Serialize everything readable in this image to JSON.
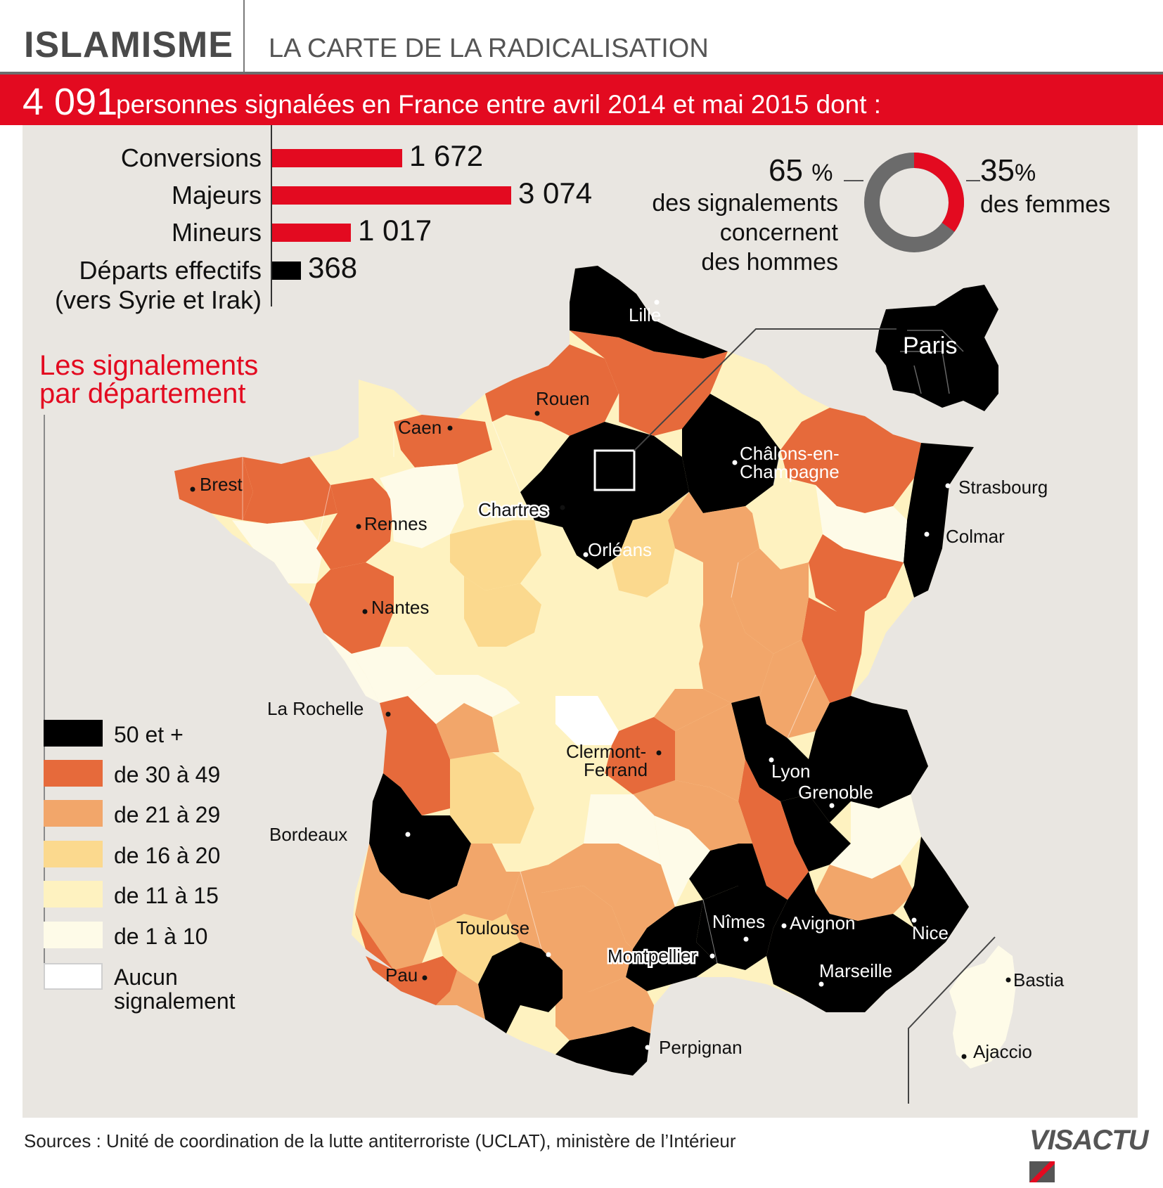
{
  "header": {
    "kicker": "ISLAMISME",
    "title": "LA CARTE DE LA RADICALISATION"
  },
  "banner": {
    "number": "4 091",
    "text": "personnes signalées en France entre avril 2014 et mai 2015 dont :"
  },
  "breakdown": [
    {
      "label": "Conversions",
      "value": 1672,
      "value_text": "1 672",
      "color": "#e30a20"
    },
    {
      "label": "Majeurs",
      "value": 3074,
      "value_text": "3 074",
      "color": "#e30a20"
    },
    {
      "label": "Mineurs",
      "value": 1017,
      "value_text": "1 017",
      "color": "#e30a20"
    },
    {
      "label": "Départs effectifs",
      "label_line2": "(vers Syrie et Irak)",
      "value": 368,
      "value_text": "368",
      "color": "#000000"
    }
  ],
  "gender": {
    "men": {
      "value": 65,
      "number": "65",
      "unit": "%",
      "text_lines": [
        "des signalements",
        "concernent",
        "des hommes"
      ],
      "color": "#6b6b6b"
    },
    "women": {
      "value": 35,
      "number": "35",
      "unit": "%",
      "text": "des femmes",
      "color": "#e30a20"
    }
  },
  "legend": {
    "title_lines": [
      "Les signalements",
      "par département"
    ],
    "items": [
      {
        "label": "50 et +",
        "color": "#000000"
      },
      {
        "label": "de 30 à 49",
        "color": "#e66a3b"
      },
      {
        "label": "de 21 à 29",
        "color": "#f2a66a"
      },
      {
        "label": "de 16 à 20",
        "color": "#fbd98e"
      },
      {
        "label": "de 11 à 15",
        "color": "#fef2c0"
      },
      {
        "label": "de 1 à 10",
        "color": "#fefbe8"
      },
      {
        "label": "Aucun signalement",
        "label_lines": [
          "Aucun",
          "signalement"
        ],
        "color": "#ffffff"
      }
    ]
  },
  "cities": [
    {
      "name": "Lille",
      "class": "dark"
    },
    {
      "name": "Rouen",
      "class": "light"
    },
    {
      "name": "Caen",
      "class": "light"
    },
    {
      "name": "Brest",
      "class": "light"
    },
    {
      "name": "Rennes",
      "class": "light"
    },
    {
      "name": "Chartres",
      "class": "halo"
    },
    {
      "name": "Orléans",
      "class": "dark"
    },
    {
      "name": "Châlons-en-",
      "class": "dark"
    },
    {
      "name": "Champagne",
      "class": "dark"
    },
    {
      "name": "Strasbourg",
      "class": "light"
    },
    {
      "name": "Colmar",
      "class": "light"
    },
    {
      "name": "Nantes",
      "class": "light"
    },
    {
      "name": "La Rochelle",
      "class": "light"
    },
    {
      "name": "Clermont-",
      "class": "light"
    },
    {
      "name": "Ferrand",
      "class": "light"
    },
    {
      "name": "Lyon",
      "class": "dark"
    },
    {
      "name": "Grenoble",
      "class": "dark"
    },
    {
      "name": "Bordeaux",
      "class": "light"
    },
    {
      "name": "Toulouse",
      "class": "light"
    },
    {
      "name": "Pau",
      "class": "light"
    },
    {
      "name": "Nîmes",
      "class": "dark"
    },
    {
      "name": "Avignon",
      "class": "dark"
    },
    {
      "name": "Montpellier",
      "class": "halo"
    },
    {
      "name": "Marseille",
      "class": "dark"
    },
    {
      "name": "Nice",
      "class": "dark"
    },
    {
      "name": "Perpignan",
      "class": "light"
    },
    {
      "name": "Bastia",
      "class": "light"
    },
    {
      "name": "Ajaccio",
      "class": "light"
    },
    {
      "name": "Paris",
      "class": "dark"
    }
  ],
  "footer": {
    "sources": "Sources : Unité de coordination de la lutte antiterroriste (UCLAT), ministère de l’Intérieur",
    "logo": "VISACTU"
  }
}
